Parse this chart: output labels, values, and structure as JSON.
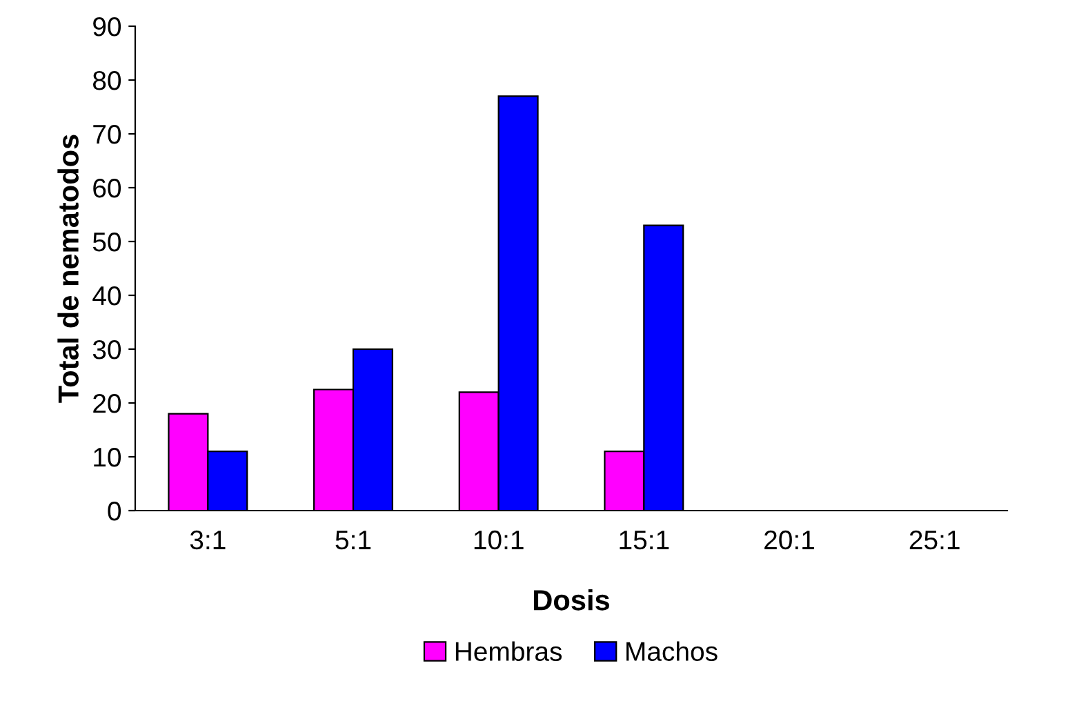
{
  "chart_data": {
    "type": "bar",
    "xlabel": "Dosis",
    "ylabel": "Total de nematodos",
    "categories": [
      "3:1",
      "5:1",
      "10:1",
      "15:1",
      "20:1",
      "25:1"
    ],
    "series": [
      {
        "name": "Hembras",
        "color": "#ff00ff",
        "values": [
          18,
          22.5,
          22,
          11,
          0,
          0
        ]
      },
      {
        "name": "Machos",
        "color": "#0000ff",
        "values": [
          11,
          30,
          77,
          53,
          0,
          0
        ]
      }
    ],
    "ylim": [
      0,
      90
    ],
    "yticks": [
      0,
      10,
      20,
      30,
      40,
      50,
      60,
      70,
      80,
      90
    ],
    "grid": false,
    "legend": "bottom"
  }
}
